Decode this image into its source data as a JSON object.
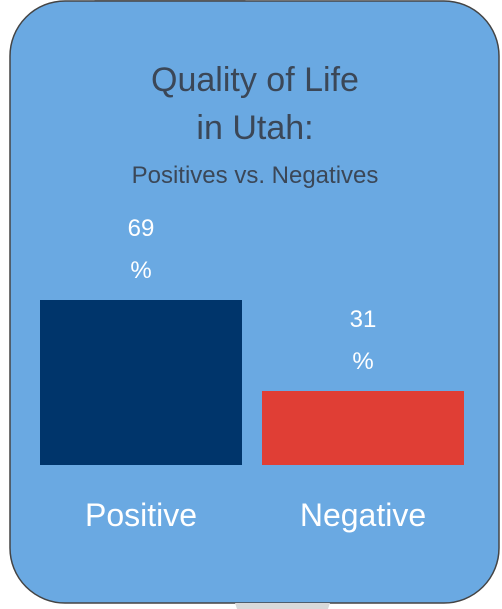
{
  "chart_data": {
    "type": "bar",
    "title": [
      "Quality of Life",
      "in Utah:"
    ],
    "subtitle": "Positives vs. Negatives",
    "categories": [
      "Positive",
      "Negative"
    ],
    "values": [
      69,
      31
    ],
    "value_labels": [
      "69 %",
      "31 %"
    ],
    "colors": [
      "#00356b",
      "#e03e35"
    ]
  }
}
